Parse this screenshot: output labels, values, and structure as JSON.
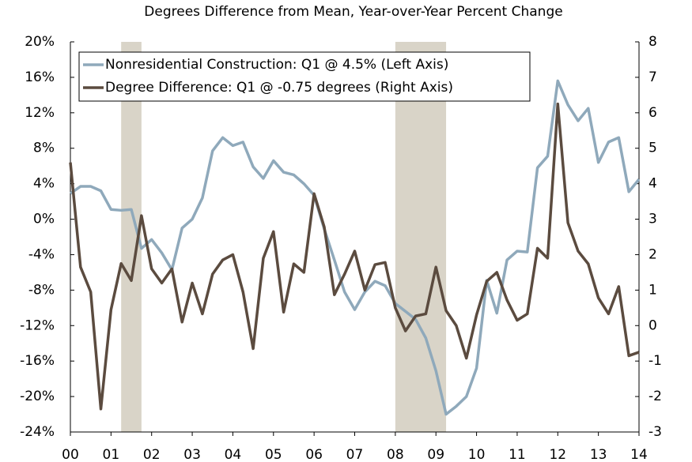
{
  "chart_data": {
    "type": "line",
    "subtitle": "Degrees Difference from Mean, Year-over-Year Percent Change",
    "x": [
      2000,
      2000.25,
      2000.5,
      2000.75,
      2001,
      2001.25,
      2001.5,
      2001.75,
      2002,
      2002.25,
      2002.5,
      2002.75,
      2003,
      2003.25,
      2003.5,
      2003.75,
      2004,
      2004.25,
      2004.5,
      2004.75,
      2005,
      2005.25,
      2005.5,
      2005.75,
      2006,
      2006.25,
      2006.5,
      2006.75,
      2007,
      2007.25,
      2007.5,
      2007.75,
      2008,
      2008.25,
      2008.5,
      2008.75,
      2009,
      2009.25,
      2009.5,
      2009.75,
      2010,
      2010.25,
      2010.5,
      2010.75,
      2011,
      2011.25,
      2011.5,
      2011.75,
      2012,
      2012.25,
      2012.5,
      2012.75,
      2013,
      2013.25,
      2013.5,
      2013.75,
      2014
    ],
    "series": [
      {
        "name": "Nonresidential Construction: Q1 @ 4.5% (Left Axis)",
        "color": "#8fa9bb",
        "values": [
          2.9,
          3.7,
          3.7,
          3.2,
          1.1,
          1.0,
          1.1,
          -3.3,
          -2.3,
          -3.8,
          -5.7,
          -1.0,
          0,
          2.4,
          7.7,
          9.2,
          8.3,
          8.7,
          5.9,
          4.6,
          6.6,
          5.3,
          5.0,
          4.0,
          2.7,
          -1.1,
          -4.6,
          -8.2,
          -10.2,
          -8.2,
          -7.0,
          -7.5,
          -9.5,
          -10.4,
          -11.3,
          -13.4,
          -17.1,
          -22.0,
          -21.1,
          -20.0,
          -16.8,
          -6.9,
          -10.6,
          -4.6,
          -3.6,
          -3.7,
          5.8,
          7.1,
          15.6,
          12.9,
          11.1,
          12.5,
          6.4,
          8.7,
          9.2,
          3.1,
          4.5
        ]
      },
      {
        "name": "Degree Difference: Q1 @ -0.75 degrees (Right Axis)",
        "color": "#5b4b3f",
        "axis": "y2",
        "values": [
          4.6,
          1.65,
          0.95,
          -2.35,
          0.45,
          1.75,
          1.27,
          3.1,
          1.6,
          1.2,
          1.6,
          0.1,
          1.2,
          0.33,
          1.45,
          1.85,
          2.0,
          0.95,
          -0.65,
          1.9,
          2.65,
          0.38,
          1.74,
          1.5,
          3.72,
          2.78,
          0.87,
          1.45,
          2.1,
          1.0,
          1.72,
          1.78,
          0.5,
          -0.15,
          0.27,
          0.33,
          1.65,
          0.42,
          0.0,
          -0.92,
          0.3,
          1.25,
          1.5,
          0.72,
          0.15,
          0.33,
          2.18,
          1.9,
          6.25,
          2.9,
          2.1,
          1.74,
          0.78,
          0.33,
          1.1,
          -0.85,
          -0.75
        ]
      }
    ],
    "shaded_regions": [
      [
        2001.25,
        2001.75
      ],
      [
        2008,
        2009.25
      ]
    ],
    "shade_color": "#d9d4c8",
    "xlim": [
      2000,
      2014
    ],
    "xticks": [
      {
        "value": 2000,
        "label": "00"
      },
      {
        "value": 2001,
        "label": "01"
      },
      {
        "value": 2002,
        "label": "02"
      },
      {
        "value": 2003,
        "label": "03"
      },
      {
        "value": 2004,
        "label": "04"
      },
      {
        "value": 2005,
        "label": "05"
      },
      {
        "value": 2006,
        "label": "06"
      },
      {
        "value": 2007,
        "label": "07"
      },
      {
        "value": 2008,
        "label": "08"
      },
      {
        "value": 2009,
        "label": "09"
      },
      {
        "value": 2010,
        "label": "10"
      },
      {
        "value": 2011,
        "label": "11"
      },
      {
        "value": 2012,
        "label": "12"
      },
      {
        "value": 2013,
        "label": "13"
      },
      {
        "value": 2014,
        "label": "14"
      }
    ],
    "ylim": [
      -24,
      20
    ],
    "yticks": [
      {
        "value": -24,
        "label": "-24%"
      },
      {
        "value": -20,
        "label": "-20%"
      },
      {
        "value": -16,
        "label": "-16%"
      },
      {
        "value": -12,
        "label": "-12%"
      },
      {
        "value": -8,
        "label": "-8%"
      },
      {
        "value": -4,
        "label": "-4%"
      },
      {
        "value": 0,
        "label": "0%"
      },
      {
        "value": 4,
        "label": "4%"
      },
      {
        "value": 8,
        "label": "8%"
      },
      {
        "value": 12,
        "label": "12%"
      },
      {
        "value": 16,
        "label": "16%"
      },
      {
        "value": 20,
        "label": "20%"
      }
    ],
    "y2lim": [
      -3,
      8
    ],
    "y2ticks": [
      -3,
      -2,
      -1,
      0,
      1,
      2,
      3,
      4,
      5,
      6,
      7,
      8
    ],
    "legend": "upper left"
  }
}
